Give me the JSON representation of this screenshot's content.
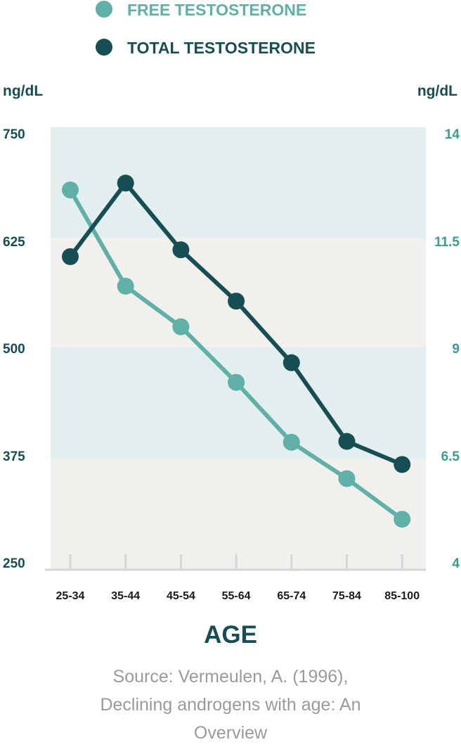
{
  "chart_data": {
    "type": "line",
    "xlabel": "AGE",
    "categories": [
      "25-34",
      "35-44",
      "45-54",
      "55-64",
      "65-74",
      "75-84",
      "85-100"
    ],
    "y_left": {
      "unit_label": "ng/dL",
      "ticks": [
        "750",
        "625",
        "500",
        "375",
        "250"
      ],
      "ylim": [
        250,
        750
      ]
    },
    "y_right": {
      "unit_label": "ng/dL",
      "ticks": [
        "14",
        "11.5",
        "9",
        "6.5",
        "4"
      ],
      "ylim": [
        4,
        14
      ]
    },
    "series": [
      {
        "name": "FREE TESTOSTERONE",
        "axis": "right",
        "color": "#5fb0a6",
        "values": [
          12.7,
          10.45,
          9.5,
          8.2,
          6.8,
          5.95,
          5.0
        ]
      },
      {
        "name": "TOTAL TESTOSTERONE",
        "axis": "left",
        "color": "#164e54",
        "values": [
          607,
          693,
          615,
          555,
          483,
          391,
          364
        ]
      }
    ],
    "legend_placement": "top-center",
    "background_bands": [
      "#e3efef",
      "#f2f0ed"
    ]
  },
  "source_lines": [
    "Source: Vermeulen, A. (1996),",
    "Declining androgens with age: An",
    "Overview"
  ]
}
